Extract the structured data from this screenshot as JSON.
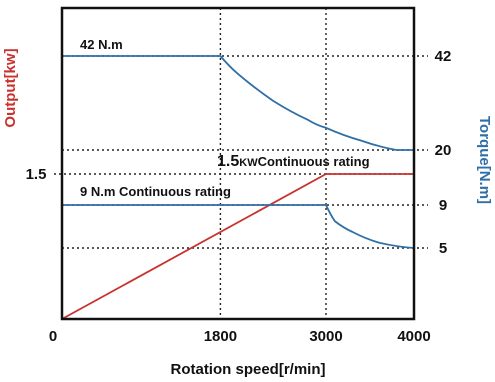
{
  "chart_data": {
    "type": "line",
    "xlabel": "Rotation speed[r/min]",
    "ylabel_left": "Output[kw]",
    "ylabel_right": "Torque[N.m]",
    "xlim": [
      0,
      4000
    ],
    "x_ticks": [
      "0",
      "1800",
      "3000",
      "4000"
    ],
    "y_left_ticks": [
      "1.5"
    ],
    "y_right_ticks": [
      "42",
      "20",
      "9",
      "5"
    ],
    "grid": "dotted at tick positions",
    "series": [
      {
        "axis": "left",
        "color": "#c8322f",
        "x": [
          0,
          3000,
          4000
        ],
        "y": [
          0,
          1.5,
          1.5
        ]
      },
      {
        "axis": "right",
        "color": "#2f6fa8",
        "x": [
          0,
          1800,
          2000,
          2400,
          2800,
          3000,
          3400,
          3800,
          4000
        ],
        "y": [
          42,
          42,
          37.8,
          31.5,
          27,
          25.2,
          22.2,
          20,
          20
        ]
      },
      {
        "axis": "right",
        "color": "#2f6fa8",
        "x": [
          0,
          3000,
          3100,
          3300,
          3600,
          4000
        ],
        "y": [
          9,
          9,
          7.5,
          6.5,
          5.5,
          5
        ]
      }
    ],
    "annotations": {
      "peak_torque": "42 N.m",
      "rated_output_value": "1.5",
      "rated_output_unit": "KW",
      "rated_output_label": "Continuous rating",
      "rated_torque": "9 N.m Continuous rating"
    }
  }
}
